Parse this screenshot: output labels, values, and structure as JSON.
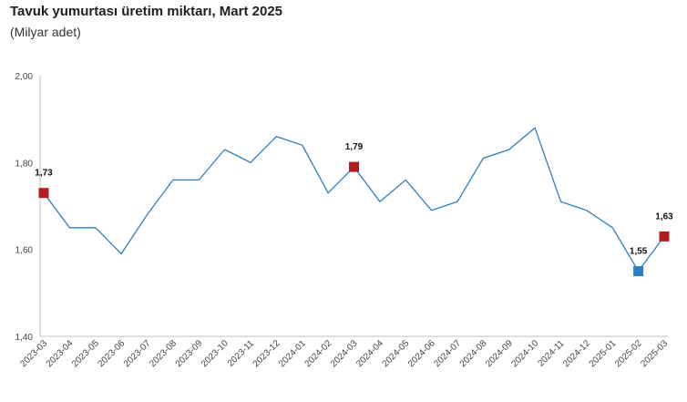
{
  "title": "Tavuk yumurtası üretim miktarı, Mart 2025",
  "subtitle": "(Milyar adet)",
  "chart_data": {
    "type": "line",
    "title": "Tavuk yumurtası üretim miktarı, Mart 2025",
    "subtitle": "(Milyar adet)",
    "xlabel": "",
    "ylabel": "",
    "ylim": [
      1.4,
      2.0
    ],
    "yticks": [
      "1,40",
      "1,60",
      "1,80",
      "2,00"
    ],
    "grid": false,
    "categories": [
      "2023-03",
      "2023-04",
      "2023-05",
      "2023-06",
      "2023-07",
      "2023-08",
      "2023-09",
      "2023-10",
      "2023-11",
      "2023-12",
      "2024-01",
      "2024-02",
      "2024-03",
      "2024-04",
      "2024-05",
      "2024-06",
      "2024-07",
      "2024-08",
      "2024-09",
      "2024-10",
      "2024-11",
      "2024-12",
      "2025-01",
      "2025-02",
      "2025-03"
    ],
    "series": [
      {
        "values": [
          1.73,
          1.65,
          1.65,
          1.59,
          1.68,
          1.76,
          1.76,
          1.83,
          1.8,
          1.86,
          1.84,
          1.73,
          1.79,
          1.71,
          1.76,
          1.69,
          1.71,
          1.81,
          1.83,
          1.88,
          1.71,
          1.69,
          1.65,
          1.55,
          1.63
        ]
      }
    ],
    "line_color": "#2e7fc1",
    "highlights": [
      {
        "index": 0,
        "label": "1,73",
        "color": "#b01c22"
      },
      {
        "index": 12,
        "label": "1,79",
        "color": "#b01c22"
      },
      {
        "index": 23,
        "label": "1,55",
        "color": "#2e7fc1"
      },
      {
        "index": 24,
        "label": "1,63",
        "color": "#b01c22"
      }
    ]
  }
}
